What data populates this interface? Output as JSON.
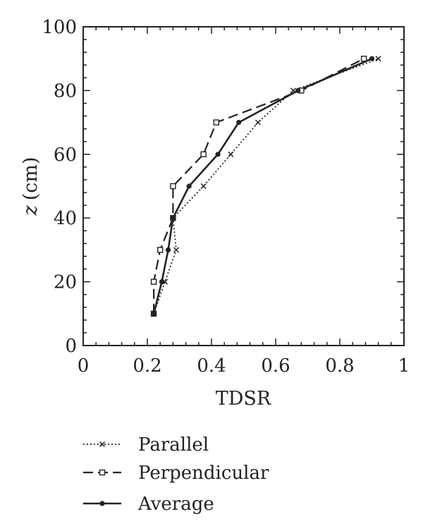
{
  "chart_data": {
    "type": "line",
    "xlabel": "TDSR",
    "ylabel_var": "z",
    "ylabel_unit": "(cm)",
    "xlim": [
      0,
      1
    ],
    "ylim": [
      0,
      100
    ],
    "x_ticks": [
      "0",
      "0.2",
      "0.4",
      "0.6",
      "0.8",
      "1"
    ],
    "y_ticks": [
      "0",
      "20",
      "40",
      "60",
      "80",
      "100"
    ],
    "grid": false,
    "legend_position": "bottom",
    "series": [
      {
        "name": "Parallel",
        "style": "dotted",
        "marker": "x",
        "points": [
          {
            "x": 0.22,
            "y": 10
          },
          {
            "x": 0.255,
            "y": 20
          },
          {
            "x": 0.29,
            "y": 30
          },
          {
            "x": 0.28,
            "y": 40
          },
          {
            "x": 0.375,
            "y": 50
          },
          {
            "x": 0.46,
            "y": 60
          },
          {
            "x": 0.545,
            "y": 70
          },
          {
            "x": 0.655,
            "y": 80
          },
          {
            "x": 0.92,
            "y": 90
          }
        ]
      },
      {
        "name": "Perpendicular",
        "style": "dashed",
        "marker": "square-open",
        "points": [
          {
            "x": 0.22,
            "y": 10
          },
          {
            "x": 0.22,
            "y": 20
          },
          {
            "x": 0.24,
            "y": 30
          },
          {
            "x": 0.28,
            "y": 40
          },
          {
            "x": 0.28,
            "y": 50
          },
          {
            "x": 0.375,
            "y": 60
          },
          {
            "x": 0.415,
            "y": 70
          },
          {
            "x": 0.68,
            "y": 80
          },
          {
            "x": 0.875,
            "y": 90
          }
        ]
      },
      {
        "name": "Average",
        "style": "solid",
        "marker": "circle-filled",
        "points": [
          {
            "x": 0.22,
            "y": 10
          },
          {
            "x": 0.245,
            "y": 20
          },
          {
            "x": 0.265,
            "y": 30
          },
          {
            "x": 0.28,
            "y": 40
          },
          {
            "x": 0.33,
            "y": 50
          },
          {
            "x": 0.42,
            "y": 60
          },
          {
            "x": 0.485,
            "y": 70
          },
          {
            "x": 0.67,
            "y": 80
          },
          {
            "x": 0.9,
            "y": 90
          }
        ]
      }
    ]
  }
}
